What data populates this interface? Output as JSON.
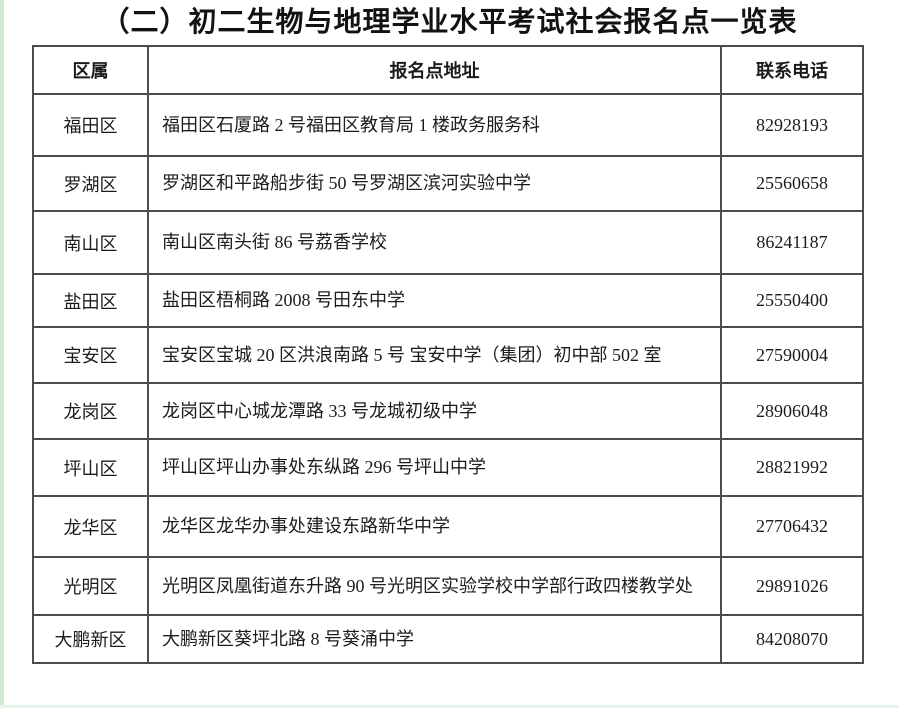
{
  "page": {
    "title": "（二）初二生物与地理学业水平考试社会报名点一览表"
  },
  "table": {
    "columns": [
      "区属",
      "报名点地址",
      "联系电话"
    ],
    "rows": [
      {
        "district": "福田区",
        "address": "福田区石厦路 2 号福田区教育局 1 楼政务服务科",
        "phone": "82928193"
      },
      {
        "district": "罗湖区",
        "address": "罗湖区和平路船步街 50 号罗湖区滨河实验中学",
        "phone": "25560658"
      },
      {
        "district": "南山区",
        "address": "南山区南头街 86 号荔香学校",
        "phone": "86241187"
      },
      {
        "district": "盐田区",
        "address": "盐田区梧桐路 2008 号田东中学",
        "phone": "25550400"
      },
      {
        "district": "宝安区",
        "address": "宝安区宝城 20 区洪浪南路 5 号 宝安中学（集团）初中部 502 室",
        "phone": "27590004"
      },
      {
        "district": "龙岗区",
        "address": "龙岗区中心城龙潭路 33 号龙城初级中学",
        "phone": "28906048"
      },
      {
        "district": "坪山区",
        "address": "坪山区坪山办事处东纵路 296 号坪山中学",
        "phone": "28821992"
      },
      {
        "district": "龙华区",
        "address": "龙华区龙华办事处建设东路新华中学",
        "phone": "27706432"
      },
      {
        "district": "光明区",
        "address": "光明区凤凰街道东升路 90 号光明区实验学校中学部行政四楼教学处",
        "phone": "29891026"
      },
      {
        "district": "大鹏新区",
        "address": "大鹏新区葵坪北路 8 号葵涌中学",
        "phone": "84208070"
      }
    ]
  },
  "colors": {
    "edge_strip_green": "#d2e9d6",
    "table_border": "#4c4c4c",
    "text": "#1c1c1c",
    "background": "#ffffff"
  }
}
